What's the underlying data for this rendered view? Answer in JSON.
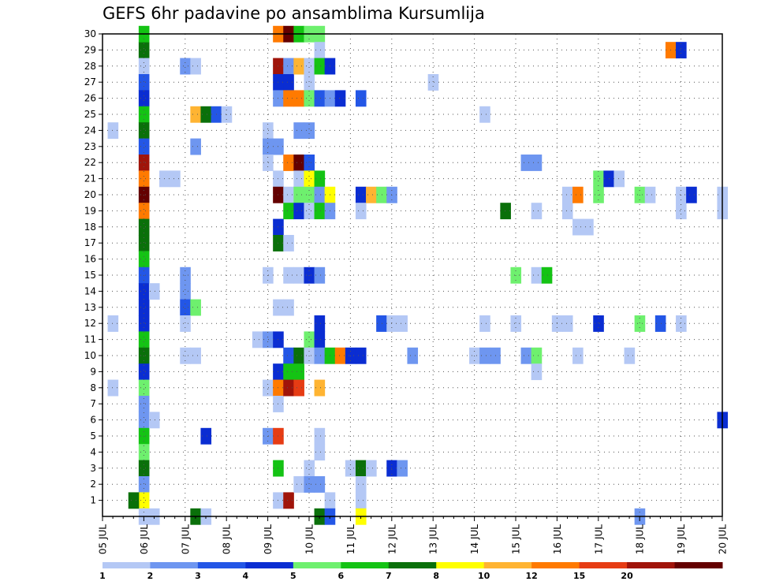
{
  "chart_data": {
    "type": "heatmap",
    "title": "GEFS 6hr padavine po ansamblima Kursumlija",
    "x_ticks": [
      "05 JUL",
      "06 JUL",
      "07 JUL",
      "08 JUL",
      "09 JUL",
      "10 JUL",
      "11 JUL",
      "12 JUL",
      "13 JUL",
      "14 JUL",
      "15 JUL",
      "16 JUL",
      "17 JUL",
      "18 JUL",
      "19 JUL",
      "20 JUL"
    ],
    "x_range_days": [
      5,
      20
    ],
    "y_range": [
      0,
      30
    ],
    "y_ticks": [
      "1",
      "2",
      "3",
      "4",
      "5",
      "6",
      "7",
      "8",
      "9",
      "10",
      "11",
      "12",
      "13",
      "14",
      "15",
      "16",
      "17",
      "18",
      "19",
      "20",
      "21",
      "22",
      "23",
      "24",
      "25",
      "26",
      "27",
      "28",
      "29",
      "30"
    ],
    "step_hours": 6,
    "grid": true,
    "legend": {
      "placement": "bottom",
      "colors": [
        "#b4c8f5",
        "#6e96f0",
        "#2356e6",
        "#0a2dd2",
        "#6ef06e",
        "#14c314",
        "#0a700a",
        "#ffff00",
        "#ffb432",
        "#ff7a00",
        "#e63c14",
        "#a0140a",
        "#640000"
      ],
      "labels": [
        "1",
        "2",
        "3",
        "4",
        "5",
        "6",
        "7",
        "8",
        "10",
        "12",
        "15",
        "20"
      ]
    },
    "cells": [
      [
        "06 JUL 00Z",
        29,
        6
      ],
      [
        "06 JUL 00Z",
        30,
        5
      ],
      [
        "06 JUL 00Z",
        28,
        0
      ],
      [
        "06 JUL 00Z",
        27,
        2
      ],
      [
        "06 JUL 00Z",
        26,
        3
      ],
      [
        "06 JUL 00Z",
        25,
        5
      ],
      [
        "06 JUL 00Z",
        24,
        6
      ],
      [
        "06 JUL 00Z",
        23,
        2
      ],
      [
        "06 JUL 00Z",
        22,
        11
      ],
      [
        "06 JUL 00Z",
        21,
        9
      ],
      [
        "06 JUL 00Z",
        20,
        12
      ],
      [
        "06 JUL 00Z",
        19,
        9
      ],
      [
        "06 JUL 00Z",
        18,
        6
      ],
      [
        "06 JUL 00Z",
        17,
        6
      ],
      [
        "06 JUL 00Z",
        16,
        5
      ],
      [
        "06 JUL 00Z",
        15,
        2
      ],
      [
        "06 JUL 00Z",
        14,
        3
      ],
      [
        "06 JUL 00Z",
        13,
        3
      ],
      [
        "06 JUL 00Z",
        12,
        3
      ],
      [
        "06 JUL 00Z",
        11,
        5
      ],
      [
        "06 JUL 00Z",
        10,
        6
      ],
      [
        "06 JUL 00Z",
        9,
        3
      ],
      [
        "06 JUL 00Z",
        8,
        4
      ],
      [
        "06 JUL 00Z",
        7,
        1
      ],
      [
        "06 JUL 00Z",
        6,
        1
      ],
      [
        "06 JUL 00Z",
        5,
        5
      ],
      [
        "06 JUL 00Z",
        4,
        4
      ],
      [
        "06 JUL 00Z",
        3,
        6
      ],
      [
        "06 JUL 00Z",
        2,
        1
      ],
      [
        "06 JUL 00Z",
        1,
        7
      ],
      [
        "05 JUL 18Z",
        1,
        6
      ],
      [
        "06 JUL 00Z",
        0,
        0
      ],
      [
        "06 JUL 06Z",
        0,
        0
      ],
      [
        "05 JUL 06Z",
        24,
        0
      ],
      [
        "05 JUL 06Z",
        12,
        0
      ],
      [
        "05 JUL 06Z",
        8,
        0
      ],
      [
        "06 JUL 06Z",
        14,
        0
      ],
      [
        "06 JUL 06Z",
        6,
        0
      ],
      [
        "06 JUL 12Z",
        21,
        0
      ],
      [
        "06 JUL 18Z",
        21,
        0
      ],
      [
        "07 JUL 00Z",
        28,
        1
      ],
      [
        "07 JUL 06Z",
        28,
        0
      ],
      [
        "07 JUL 06Z",
        25,
        8
      ],
      [
        "07 JUL 12Z",
        25,
        6
      ],
      [
        "07 JUL 18Z",
        25,
        2
      ],
      [
        "08 JUL 00Z",
        25,
        0
      ],
      [
        "07 JUL 06Z",
        23,
        1
      ],
      [
        "07 JUL 00Z",
        15,
        1
      ],
      [
        "07 JUL 00Z",
        14,
        1
      ],
      [
        "07 JUL 00Z",
        13,
        2
      ],
      [
        "07 JUL 06Z",
        13,
        4
      ],
      [
        "07 JUL 00Z",
        12,
        0
      ],
      [
        "07 JUL 00Z",
        10,
        0
      ],
      [
        "07 JUL 06Z",
        10,
        0
      ],
      [
        "07 JUL 12Z",
        5,
        3
      ],
      [
        "07 JUL 06Z",
        0,
        6
      ],
      [
        "07 JUL 12Z",
        0,
        0
      ],
      [
        "08 JUL 18Z",
        11,
        0
      ],
      [
        "09 JUL 00Z",
        11,
        1
      ],
      [
        "09 JUL 00Z",
        24,
        0
      ],
      [
        "09 JUL 00Z",
        23,
        1
      ],
      [
        "09 JUL 06Z",
        23,
        1
      ],
      [
        "09 JUL 00Z",
        22,
        0
      ],
      [
        "09 JUL 00Z",
        15,
        0
      ],
      [
        "09 JUL 00Z",
        8,
        0
      ],
      [
        "09 JUL 00Z",
        5,
        1
      ],
      [
        "09 JUL 06Z",
        30,
        9
      ],
      [
        "09 JUL 06Z",
        28,
        11
      ],
      [
        "09 JUL 06Z",
        27,
        3
      ],
      [
        "09 JUL 06Z",
        26,
        1
      ],
      [
        "09 JUL 06Z",
        21,
        0
      ],
      [
        "09 JUL 06Z",
        20,
        12
      ],
      [
        "09 JUL 06Z",
        18,
        3
      ],
      [
        "09 JUL 06Z",
        17,
        6
      ],
      [
        "09 JUL 06Z",
        13,
        0
      ],
      [
        "09 JUL 06Z",
        11,
        3
      ],
      [
        "09 JUL 06Z",
        9,
        3
      ],
      [
        "09 JUL 06Z",
        8,
        9
      ],
      [
        "09 JUL 06Z",
        7,
        0
      ],
      [
        "09 JUL 06Z",
        5,
        10
      ],
      [
        "09 JUL 06Z",
        3,
        5
      ],
      [
        "09 JUL 06Z",
        1,
        0
      ],
      [
        "09 JUL 12Z",
        30,
        12
      ],
      [
        "09 JUL 12Z",
        28,
        1
      ],
      [
        "09 JUL 12Z",
        27,
        3
      ],
      [
        "09 JUL 12Z",
        26,
        9
      ],
      [
        "09 JUL 12Z",
        22,
        9
      ],
      [
        "09 JUL 12Z",
        20,
        0
      ],
      [
        "09 JUL 12Z",
        19,
        5
      ],
      [
        "09 JUL 12Z",
        17,
        0
      ],
      [
        "09 JUL 12Z",
        15,
        0
      ],
      [
        "09 JUL 12Z",
        13,
        0
      ],
      [
        "09 JUL 12Z",
        10,
        2
      ],
      [
        "09 JUL 12Z",
        9,
        5
      ],
      [
        "09 JUL 12Z",
        8,
        11
      ],
      [
        "09 JUL 12Z",
        1,
        11
      ],
      [
        "09 JUL 18Z",
        30,
        5
      ],
      [
        "09 JUL 18Z",
        28,
        8
      ],
      [
        "09 JUL 18Z",
        26,
        9
      ],
      [
        "09 JUL 18Z",
        24,
        1
      ],
      [
        "09 JUL 18Z",
        22,
        12
      ],
      [
        "09 JUL 18Z",
        21,
        0
      ],
      [
        "09 JUL 18Z",
        20,
        4
      ],
      [
        "09 JUL 18Z",
        19,
        3
      ],
      [
        "09 JUL 18Z",
        15,
        0
      ],
      [
        "09 JUL 18Z",
        10,
        6
      ],
      [
        "09 JUL 18Z",
        9,
        5
      ],
      [
        "09 JUL 18Z",
        8,
        10
      ],
      [
        "09 JUL 18Z",
        2,
        0
      ],
      [
        "10 JUL 00Z",
        30,
        4
      ],
      [
        "10 JUL 00Z",
        28,
        0
      ],
      [
        "10 JUL 00Z",
        27,
        0
      ],
      [
        "10 JUL 00Z",
        26,
        4
      ],
      [
        "10 JUL 00Z",
        24,
        1
      ],
      [
        "10 JUL 00Z",
        22,
        2
      ],
      [
        "10 JUL 00Z",
        21,
        7
      ],
      [
        "10 JUL 00Z",
        20,
        4
      ],
      [
        "10 JUL 00Z",
        19,
        0
      ],
      [
        "10 JUL 00Z",
        15,
        3
      ],
      [
        "10 JUL 00Z",
        11,
        4
      ],
      [
        "10 JUL 00Z",
        10,
        0
      ],
      [
        "10 JUL 00Z",
        3,
        0
      ],
      [
        "10 JUL 00Z",
        2,
        1
      ],
      [
        "10 JUL 06Z",
        30,
        4
      ],
      [
        "10 JUL 06Z",
        29,
        0
      ],
      [
        "10 JUL 06Z",
        28,
        5
      ],
      [
        "10 JUL 06Z",
        26,
        2
      ],
      [
        "10 JUL 06Z",
        21,
        5
      ],
      [
        "10 JUL 06Z",
        20,
        1
      ],
      [
        "10 JUL 06Z",
        19,
        5
      ],
      [
        "10 JUL 06Z",
        15,
        1
      ],
      [
        "10 JUL 06Z",
        12,
        3
      ],
      [
        "10 JUL 06Z",
        11,
        3
      ],
      [
        "10 JUL 06Z",
        10,
        1
      ],
      [
        "10 JUL 06Z",
        8,
        8
      ],
      [
        "10 JUL 06Z",
        5,
        0
      ],
      [
        "10 JUL 06Z",
        4,
        0
      ],
      [
        "10 JUL 06Z",
        2,
        1
      ],
      [
        "10 JUL 06Z",
        0,
        6
      ],
      [
        "10 JUL 12Z",
        28,
        3
      ],
      [
        "10 JUL 12Z",
        26,
        1
      ],
      [
        "10 JUL 12Z",
        20,
        7
      ],
      [
        "10 JUL 12Z",
        19,
        1
      ],
      [
        "10 JUL 12Z",
        10,
        5
      ],
      [
        "10 JUL 12Z",
        1,
        0
      ],
      [
        "10 JUL 12Z",
        0,
        2
      ],
      [
        "10 JUL 18Z",
        26,
        3
      ],
      [
        "10 JUL 18Z",
        10,
        9
      ],
      [
        "11 JUL 00Z",
        10,
        3
      ],
      [
        "11 JUL 00Z",
        3,
        0
      ],
      [
        "11 JUL 06Z",
        26,
        2
      ],
      [
        "11 JUL 06Z",
        20,
        3
      ],
      [
        "11 JUL 06Z",
        19,
        0
      ],
      [
        "11 JUL 06Z",
        10,
        3
      ],
      [
        "11 JUL 06Z",
        3,
        6
      ],
      [
        "11 JUL 06Z",
        2,
        0
      ],
      [
        "11 JUL 06Z",
        1,
        0
      ],
      [
        "11 JUL 06Z",
        0,
        7
      ],
      [
        "11 JUL 12Z",
        20,
        8
      ],
      [
        "11 JUL 12Z",
        3,
        0
      ],
      [
        "11 JUL 18Z",
        20,
        4
      ],
      [
        "11 JUL 18Z",
        12,
        2
      ],
      [
        "12 JUL 00Z",
        20,
        1
      ],
      [
        "12 JUL 00Z",
        12,
        0
      ],
      [
        "12 JUL 00Z",
        3,
        3
      ],
      [
        "12 JUL 06Z",
        12,
        0
      ],
      [
        "12 JUL 06Z",
        3,
        1
      ],
      [
        "12 JUL 12Z",
        10,
        1
      ],
      [
        "13 JUL 00Z",
        27,
        0
      ],
      [
        "14 JUL 00Z",
        10,
        0
      ],
      [
        "14 JUL 06Z",
        25,
        0
      ],
      [
        "14 JUL 06Z",
        12,
        0
      ],
      [
        "14 JUL 06Z",
        10,
        1
      ],
      [
        "14 JUL 12Z",
        10,
        1
      ],
      [
        "14 JUL 18Z",
        19,
        6
      ],
      [
        "15 JUL 00Z",
        15,
        4
      ],
      [
        "15 JUL 00Z",
        12,
        0
      ],
      [
        "15 JUL 06Z",
        22,
        1
      ],
      [
        "15 JUL 06Z",
        10,
        1
      ],
      [
        "15 JUL 12Z",
        22,
        1
      ],
      [
        "15 JUL 12Z",
        19,
        0
      ],
      [
        "15 JUL 12Z",
        15,
        0
      ],
      [
        "15 JUL 12Z",
        10,
        4
      ],
      [
        "15 JUL 12Z",
        9,
        0
      ],
      [
        "15 JUL 18Z",
        15,
        5
      ],
      [
        "16 JUL 00Z",
        12,
        0
      ],
      [
        "16 JUL 06Z",
        12,
        0
      ],
      [
        "16 JUL 06Z",
        20,
        0
      ],
      [
        "16 JUL 06Z",
        19,
        0
      ],
      [
        "16 JUL 12Z",
        20,
        9
      ],
      [
        "16 JUL 12Z",
        18,
        0
      ],
      [
        "16 JUL 12Z",
        10,
        0
      ],
      [
        "16 JUL 18Z",
        18,
        0
      ],
      [
        "17 JUL 00Z",
        21,
        4
      ],
      [
        "17 JUL 00Z",
        20,
        4
      ],
      [
        "17 JUL 00Z",
        12,
        3
      ],
      [
        "17 JUL 06Z",
        21,
        3
      ],
      [
        "17 JUL 12Z",
        21,
        0
      ],
      [
        "17 JUL 18Z",
        10,
        0
      ],
      [
        "18 JUL 00Z",
        20,
        4
      ],
      [
        "18 JUL 00Z",
        12,
        4
      ],
      [
        "18 JUL 06Z",
        20,
        0
      ],
      [
        "18 JUL 00Z",
        0,
        1
      ],
      [
        "18 JUL 12Z",
        12,
        2
      ],
      [
        "19 JUL 00Z",
        12,
        0
      ],
      [
        "18 JUL 18Z",
        29,
        9
      ],
      [
        "19 JUL 00Z",
        29,
        3
      ],
      [
        "19 JUL 00Z",
        20,
        0
      ],
      [
        "19 JUL 00Z",
        19,
        0
      ],
      [
        "19 JUL 06Z",
        20,
        3
      ],
      [
        "20 JUL 00Z",
        20,
        0
      ],
      [
        "20 JUL 00Z",
        19,
        0
      ],
      [
        "20 JUL 00Z",
        6,
        3
      ]
    ]
  }
}
